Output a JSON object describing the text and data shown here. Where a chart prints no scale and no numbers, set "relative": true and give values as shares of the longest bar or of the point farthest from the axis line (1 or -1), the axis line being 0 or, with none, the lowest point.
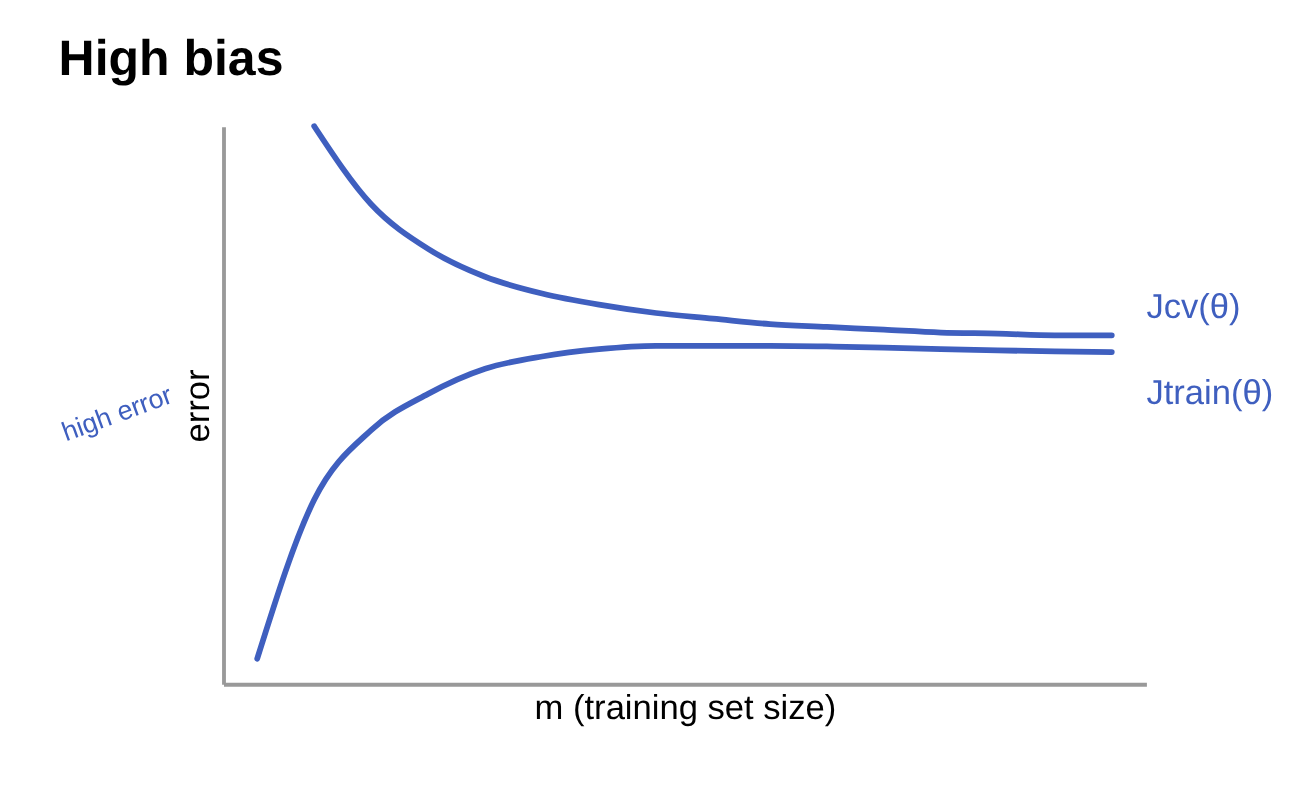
{
  "chart_data": {
    "type": "line",
    "title": "High bias",
    "xlabel": "m (training set size)",
    "ylabel": "error",
    "relative": true,
    "tick_labels": false,
    "grid": false,
    "marker": "none",
    "line_style": "solid",
    "categories": [
      null,
      null,
      null,
      null,
      null,
      null,
      null,
      null,
      null,
      null,
      null,
      null,
      null,
      null,
      null,
      null
    ],
    "series": [
      {
        "name": "Jcv(θ)",
        "color": "#3f5fbf",
        "values": [
          null,
          1.0,
          0.86,
          0.78,
          0.73,
          0.7,
          0.68,
          0.665,
          0.655,
          0.645,
          0.64,
          0.635,
          0.63,
          0.628,
          0.625,
          0.625
        ]
      },
      {
        "name": "Jtrain(θ)",
        "color": "#3f5fbf",
        "values": [
          0.045,
          0.33,
          0.455,
          0.52,
          0.565,
          0.587,
          0.6,
          0.606,
          0.606,
          0.606,
          0.605,
          0.603,
          0.6,
          0.598,
          0.596,
          0.595
        ]
      }
    ],
    "annotations": [
      "high error"
    ]
  }
}
